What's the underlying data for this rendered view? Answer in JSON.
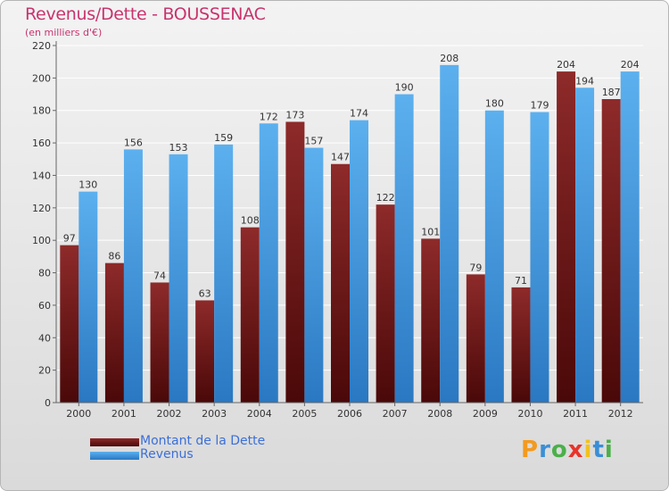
{
  "chart_data": {
    "type": "bar",
    "title": "Revenus/Dette - BOUSSENAC",
    "subtitle": "(en milliers d'€)",
    "xlabel": "",
    "ylabel": "",
    "ylim": [
      0,
      220
    ],
    "yticks": [
      0,
      20,
      40,
      60,
      80,
      100,
      120,
      140,
      160,
      180,
      200,
      220
    ],
    "grid": true,
    "legend_position": "bottom-left",
    "categories": [
      "2000",
      "2001",
      "2002",
      "2003",
      "2004",
      "2005",
      "2006",
      "2007",
      "2008",
      "2009",
      "2010",
      "2011",
      "2012"
    ],
    "series": [
      {
        "name": "Montant de la Dette",
        "color": "#7a1a1a",
        "values": [
          97,
          86,
          74,
          63,
          108,
          173,
          147,
          122,
          101,
          79,
          71,
          204,
          187
        ]
      },
      {
        "name": "Revenus",
        "color": "#4a9de0",
        "values": [
          130,
          156,
          153,
          159,
          172,
          157,
          174,
          190,
          208,
          180,
          179,
          194,
          204
        ]
      }
    ]
  },
  "logo": {
    "letters": [
      "P",
      "r",
      "o",
      "x",
      "i",
      "t",
      "i"
    ],
    "colors": [
      "#f39a1e",
      "#3a8fd6",
      "#4bb04a",
      "#e8332a",
      "#f3c11e",
      "#3a8fd6",
      "#4bb04a"
    ]
  }
}
